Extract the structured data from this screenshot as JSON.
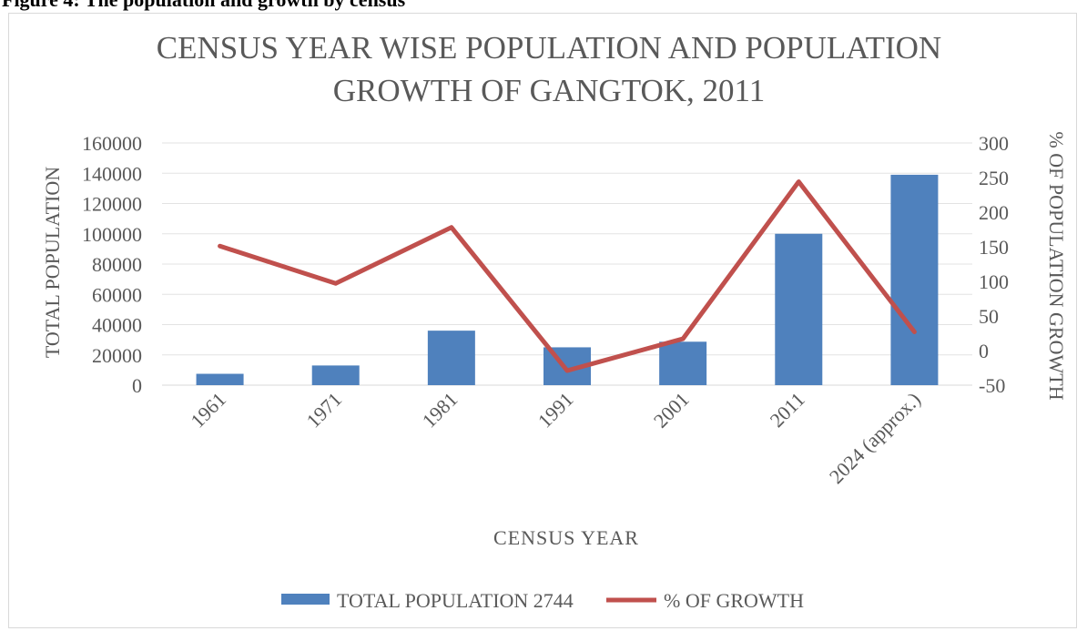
{
  "caption": "Figure 4: The population and growth by census",
  "chart_data": {
    "type": "bar",
    "title_lines": [
      "CENSUS YEAR WISE POPULATION AND POPULATION",
      "GROWTH OF GANGTOK, 2011"
    ],
    "xlabel": "CENSUS YEAR",
    "ylabel": "TOTAL POPULATION",
    "y2label": "% OF POPULATION GROWTH",
    "categories": [
      "1961",
      "1971",
      "1981",
      "1991",
      "2001",
      "2011",
      "2024 (approx.)"
    ],
    "ylim": [
      0,
      160000
    ],
    "yticks": [
      0,
      20000,
      40000,
      60000,
      80000,
      100000,
      120000,
      140000,
      160000
    ],
    "y2lim": [
      -50,
      300
    ],
    "y2ticks": [
      -50,
      0,
      50,
      100,
      150,
      200,
      250,
      300
    ],
    "series": [
      {
        "name": "TOTAL POPULATION 2744",
        "type": "bar",
        "axis": "left",
        "color": "#4f81bd",
        "values": [
          7500,
          13000,
          36000,
          25000,
          28700,
          100000,
          139000
        ]
      },
      {
        "name": "% OF GROWTH",
        "type": "line",
        "axis": "right",
        "color": "#c0504d",
        "values": [
          151,
          97,
          178,
          -29,
          17,
          244,
          27
        ]
      }
    ],
    "grid": true,
    "legend_position": "bottom"
  }
}
